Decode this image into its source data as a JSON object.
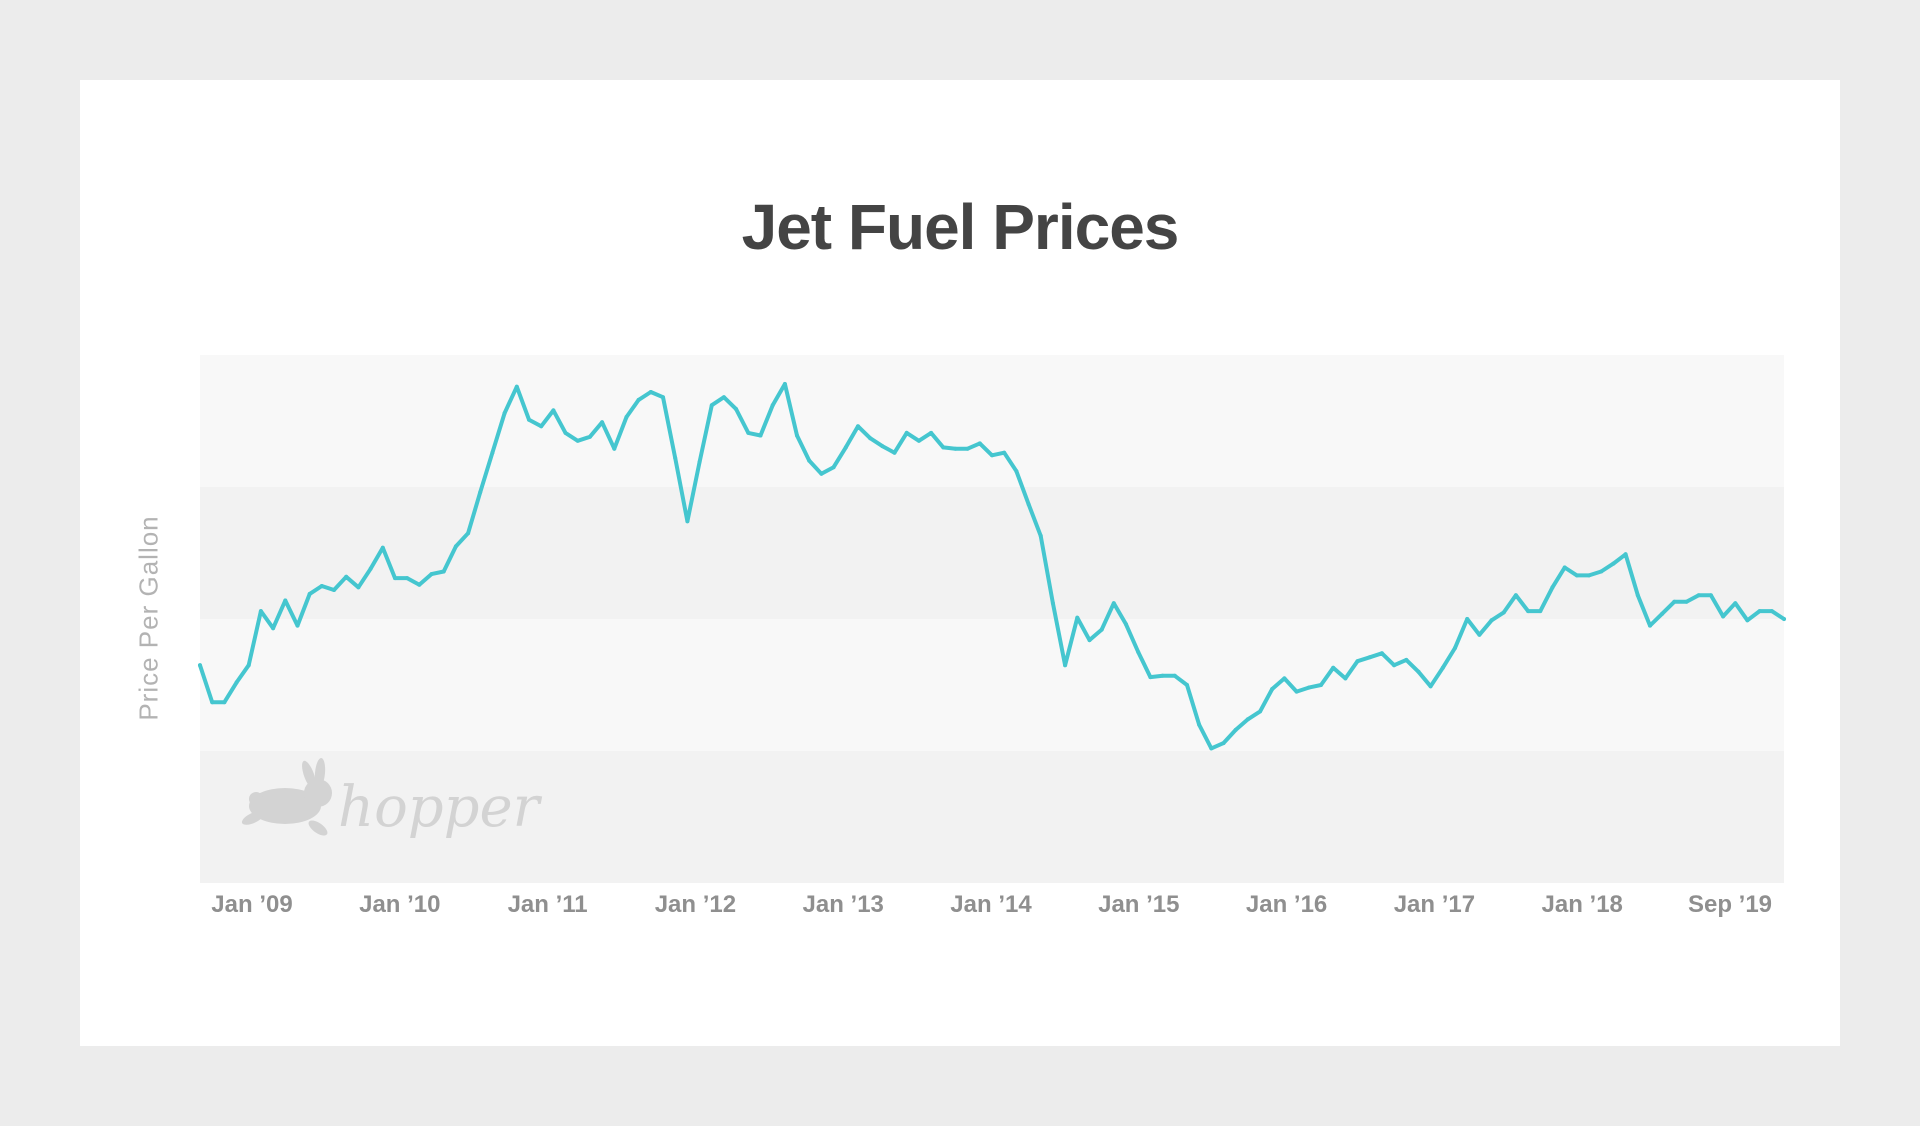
{
  "chart_data": {
    "type": "line",
    "title": "Jet Fuel Prices",
    "ylabel": "Price Per Gallon",
    "xlabel": "",
    "x_tick_labels": [
      "Jan ’09",
      "Jan ’10",
      "Jan ’11",
      "Jan ’12",
      "Jan ’13",
      "Jan ’14",
      "Jan ’15",
      "Jan ’16",
      "Jan ’17",
      "Jan ’18",
      "Sep ’19"
    ],
    "x_range": [
      "2008-12",
      "2019-10"
    ],
    "y_range": [
      0,
      4
    ],
    "y_axis_labeled": false,
    "grid": "alternating horizontal bands",
    "legend": "none",
    "line_color": "#45c6cf",
    "series": [
      {
        "x": [
          "2008-12",
          "2009-01",
          "2009-02",
          "2009-03",
          "2009-04",
          "2009-05",
          "2009-06",
          "2009-07",
          "2009-08",
          "2009-09",
          "2009-10",
          "2009-11",
          "2009-12",
          "2010-01",
          "2010-02",
          "2010-03",
          "2010-04",
          "2010-05",
          "2010-06",
          "2010-07",
          "2010-08",
          "2010-09",
          "2010-10",
          "2010-11",
          "2010-12",
          "2011-01",
          "2011-02",
          "2011-03",
          "2011-04",
          "2011-05",
          "2011-06",
          "2011-07",
          "2011-08",
          "2011-09",
          "2011-10",
          "2011-11",
          "2011-12",
          "2012-01",
          "2012-02",
          "2012-03",
          "2012-04",
          "2012-05",
          "2012-06",
          "2012-07",
          "2012-08",
          "2012-09",
          "2012-10",
          "2012-11",
          "2012-12",
          "2013-01",
          "2013-02",
          "2013-03",
          "2013-04",
          "2013-05",
          "2013-06",
          "2013-07",
          "2013-08",
          "2013-09",
          "2013-10",
          "2013-11",
          "2013-12",
          "2014-01",
          "2014-02",
          "2014-03",
          "2014-04",
          "2014-05",
          "2014-06",
          "2014-07",
          "2014-08",
          "2014-09",
          "2014-10",
          "2014-11",
          "2014-12",
          "2015-01",
          "2015-02",
          "2015-03",
          "2015-04",
          "2015-05",
          "2015-06",
          "2015-07",
          "2015-08",
          "2015-09",
          "2015-10",
          "2015-11",
          "2015-12",
          "2016-01",
          "2016-02",
          "2016-03",
          "2016-04",
          "2016-05",
          "2016-06",
          "2016-07",
          "2016-08",
          "2016-09",
          "2016-10",
          "2016-11",
          "2016-12",
          "2017-01",
          "2017-02",
          "2017-03",
          "2017-04",
          "2017-05",
          "2017-06",
          "2017-07",
          "2017-08",
          "2017-09",
          "2017-10",
          "2017-11",
          "2017-12",
          "2018-01",
          "2018-02",
          "2018-03",
          "2018-04",
          "2018-05",
          "2018-06",
          "2018-07",
          "2018-08",
          "2018-09",
          "2018-10",
          "2018-11",
          "2018-12",
          "2019-01",
          "2019-02",
          "2019-03",
          "2019-04",
          "2019-05",
          "2019-06",
          "2019-07",
          "2019-08",
          "2019-09",
          "2019-10"
        ],
        "y": [
          1.65,
          1.37,
          1.37,
          1.52,
          1.65,
          2.06,
          1.93,
          2.14,
          1.95,
          2.19,
          2.25,
          2.22,
          2.32,
          2.24,
          2.38,
          2.54,
          2.31,
          2.31,
          2.26,
          2.34,
          2.36,
          2.55,
          2.65,
          2.96,
          3.26,
          3.56,
          3.76,
          3.51,
          3.46,
          3.58,
          3.41,
          3.35,
          3.38,
          3.49,
          3.29,
          3.53,
          3.66,
          3.72,
          3.68,
          3.22,
          2.74,
          3.19,
          3.62,
          3.68,
          3.59,
          3.41,
          3.39,
          3.62,
          3.78,
          3.39,
          3.2,
          3.1,
          3.15,
          3.3,
          3.46,
          3.37,
          3.31,
          3.26,
          3.41,
          3.35,
          3.41,
          3.3,
          3.29,
          3.29,
          3.33,
          3.24,
          3.26,
          3.12,
          2.87,
          2.63,
          2.12,
          1.65,
          2.01,
          1.84,
          1.92,
          2.12,
          1.96,
          1.75,
          1.56,
          1.57,
          1.57,
          1.5,
          1.2,
          1.02,
          1.06,
          1.16,
          1.24,
          1.3,
          1.47,
          1.55,
          1.45,
          1.48,
          1.5,
          1.63,
          1.55,
          1.68,
          1.71,
          1.74,
          1.65,
          1.69,
          1.6,
          1.49,
          1.63,
          1.78,
          2.0,
          1.88,
          1.99,
          2.05,
          2.18,
          2.06,
          2.06,
          2.24,
          2.39,
          2.33,
          2.33,
          2.36,
          2.42,
          2.49,
          2.18,
          1.95,
          2.04,
          2.13,
          2.13,
          2.18,
          2.18,
          2.02,
          2.12,
          1.99,
          2.06,
          2.06,
          2.0
        ]
      }
    ]
  },
  "watermark": {
    "text": "hopper",
    "icon": "rabbit-icon"
  }
}
